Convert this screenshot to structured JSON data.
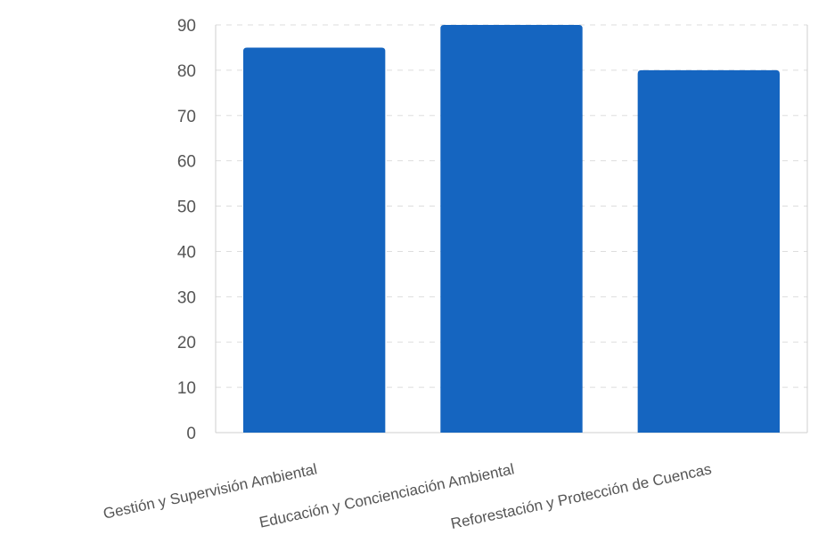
{
  "colors": {
    "bar": "#1565c0",
    "grid": "#dddddd",
    "axis": "#cfcfcf",
    "text": "#555555"
  },
  "chart_data": {
    "type": "bar",
    "title": "",
    "xlabel": "",
    "ylabel": "",
    "categories": [
      "Gestión y Supervisión Ambiental",
      "Educación y Concienciación Ambiental",
      "Reforestación y Protección de Cuencas"
    ],
    "values": [
      85,
      90,
      80
    ],
    "ylim": [
      0,
      90
    ],
    "yticks": [
      0,
      10,
      20,
      30,
      40,
      50,
      60,
      70,
      80,
      90
    ],
    "grid": true,
    "legend": "none"
  }
}
